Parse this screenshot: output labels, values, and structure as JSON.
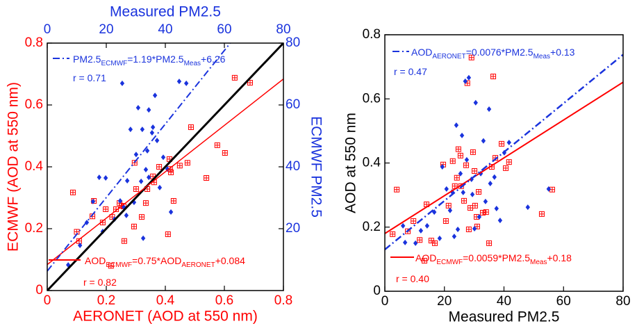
{
  "chart_data": [
    {
      "type": "scatter",
      "xlabel": "AERONET (AOD at 550 nm)",
      "ylabel": "ECMWF (AOD at 550 nm)",
      "x2label": "Measured PM2.5",
      "y2label": "ECMWF PM2.5",
      "xlim": [
        0,
        0.8
      ],
      "xticks": [
        0,
        0.2,
        0.4,
        0.6,
        0.8
      ],
      "ylim": [
        0,
        0.8
      ],
      "yticks": [
        0,
        0.2,
        0.4,
        0.6,
        0.8
      ],
      "x2lim": [
        0,
        80
      ],
      "x2ticks": [
        0,
        20,
        40,
        60,
        80
      ],
      "y2lim": [
        0,
        80
      ],
      "y2ticks": [
        20,
        40,
        60,
        80
      ],
      "xcolor": "#ff0000",
      "ycolor": "#ff0000",
      "x2color": "#1a33dd",
      "y2color": "#1a33dd",
      "series": [
        {
          "marker": "square",
          "color": "#ff0000",
          "x": [
            0.087,
            0.1,
            0.108,
            0.153,
            0.158,
            0.188,
            0.198,
            0.216,
            0.22,
            0.233,
            0.245,
            0.252,
            0.261,
            0.259,
            0.294,
            0.301,
            0.296,
            0.32,
            0.334,
            0.339,
            0.358,
            0.362,
            0.379,
            0.409,
            0.414,
            0.419,
            0.428,
            0.449,
            0.475,
            0.487,
            0.539,
            0.576,
            0.602,
            0.635,
            0.687,
            0.416
          ],
          "values": [
            0.317,
            0.19,
            0.16,
            0.24,
            0.29,
            0.22,
            0.263,
            0.08,
            0.238,
            0.263,
            0.283,
            0.274,
            0.16,
            0.272,
            0.207,
            0.328,
            0.413,
            0.238,
            0.283,
            0.328,
            0.369,
            0.35,
            0.4,
            0.182,
            0.425,
            0.382,
            0.29,
            0.404,
            0.413,
            0.528,
            0.364,
            0.47,
            0.445,
            0.688,
            0.672,
            0.393
          ]
        },
        {
          "marker": "diamond",
          "color": "#1a33dd",
          "axis": "y2",
          "x": [
            7.1,
            11.1,
            13.4,
            15.5,
            17.6,
            19.8,
            18.8,
            22.8,
            24.7,
            25.4,
            25.9,
            26.8,
            27.1,
            28.2,
            29.4,
            30.1,
            30.8,
            31.8,
            32.2,
            32.5,
            33.4,
            33.9,
            34.4,
            35.5,
            35.8,
            36.5,
            37.2,
            38.1,
            39.3,
            40.7,
            41.9,
            44.7,
            47.1,
            34.4
          ],
          "values": [
            8.3,
            14.6,
            22.0,
            28.8,
            36.6,
            36.4,
            19.1,
            23.1,
            29.0,
            67.0,
            27.0,
            24.3,
            35.5,
            52.1,
            28.5,
            44.0,
            59.1,
            35.3,
            52.1,
            16.9,
            39.1,
            45.2,
            58.4,
            51.0,
            52.8,
            63.1,
            48.5,
            33.3,
            43.1,
            39.3,
            25.4,
            67.6,
            67.0,
            36.6
          ]
        },
        {
          "marker": "line",
          "color": "#000000",
          "width": 3,
          "x": [
            0,
            0.8
          ],
          "values": [
            0,
            0.8
          ]
        },
        {
          "marker": "line",
          "color": "#ff0000",
          "width": 1.5,
          "x": [
            0,
            0.8
          ],
          "values": [
            0.084,
            0.684
          ]
        },
        {
          "marker": "line",
          "color": "#1a33dd",
          "width": 2,
          "dash": "10 4 2 4",
          "axis": "y2",
          "x": [
            0,
            62
          ],
          "values": [
            6.3,
            80
          ]
        }
      ],
      "annotations": [
        {
          "color": "#1a33dd",
          "dash": "10 4 2 4",
          "parts": [
            {
              "text": "PM2.5"
            },
            {
              "text": "ECMWF",
              "sub": true
            },
            {
              "text": "=1.19*PM2.5"
            },
            {
              "text": "Meas",
              "sub": true
            },
            {
              "text": "+6.26"
            }
          ]
        },
        {
          "color": "#1a33dd",
          "parts": [
            {
              "text": "r = 0.71"
            }
          ]
        },
        {
          "color": "#ff0000",
          "dash": "none",
          "parts": [
            {
              "text": "AOD"
            },
            {
              "text": "ECMWF",
              "sub": true
            },
            {
              "text": "=0.75*AOD"
            },
            {
              "text": "AERONET",
              "sub": true
            },
            {
              "text": "+0.084"
            }
          ]
        },
        {
          "color": "#ff0000",
          "parts": [
            {
              "text": "r = 0.82"
            }
          ]
        }
      ]
    },
    {
      "type": "scatter",
      "xlabel": "Measured PM2.5",
      "ylabel": "AOD at 550 nm",
      "xlim": [
        0,
        80
      ],
      "xticks": [
        0,
        20,
        40,
        60,
        80
      ],
      "ylim": [
        0,
        0.8
      ],
      "yticks": [
        0,
        0.2,
        0.4,
        0.6,
        0.8
      ],
      "xcolor": "#000000",
      "ycolor": "#000000",
      "series": [
        {
          "marker": "square",
          "color": "#ff0000",
          "x": [
            2.6,
            4.0,
            7.7,
            9.6,
            11.7,
            13.3,
            14.0,
            15.6,
            16.8,
            19.6,
            20.5,
            21.4,
            22.8,
            23.5,
            24.2,
            24.7,
            25.4,
            25.6,
            26.6,
            27.3,
            27.7,
            28.2,
            28.7,
            29.1,
            29.6,
            30.1,
            30.3,
            30.8,
            31.0,
            31.5,
            32.9,
            34.0,
            35.0,
            35.9,
            36.4,
            37.1,
            39.2,
            40.6,
            41.7,
            52.7,
            56.2
          ],
          "values": [
            0.178,
            0.317,
            0.187,
            0.219,
            0.16,
            0.095,
            0.271,
            0.158,
            0.15,
            0.395,
            0.219,
            0.267,
            0.406,
            0.328,
            0.354,
            0.443,
            0.423,
            0.328,
            0.282,
            0.393,
            0.649,
            0.193,
            0.26,
            0.729,
            0.434,
            0.375,
            0.267,
            0.232,
            0.202,
            0.31,
            0.245,
            0.247,
            0.15,
            0.388,
            0.67,
            0.416,
            0.46,
            0.384,
            0.403,
            0.241,
            0.317
          ]
        },
        {
          "marker": "diamond",
          "color": "#1a33dd",
          "x": [
            6.1,
            6.8,
            10.3,
            12.1,
            14.2,
            16.6,
            18.4,
            19.3,
            20.7,
            21.9,
            22.6,
            23.3,
            24.0,
            24.5,
            25.4,
            25.9,
            26.3,
            27.0,
            27.5,
            28.2,
            29.1,
            29.4,
            30.1,
            30.5,
            31.7,
            32.2,
            33.1,
            33.8,
            35.0,
            35.4,
            36.8,
            37.5,
            38.7,
            40.1,
            41.7,
            48.0,
            55.0
          ],
          "values": [
            0.204,
            0.152,
            0.15,
            0.189,
            0.204,
            0.247,
            0.165,
            0.388,
            0.319,
            0.252,
            0.31,
            0.171,
            0.518,
            0.193,
            0.367,
            0.486,
            0.308,
            0.655,
            0.41,
            0.666,
            0.349,
            0.302,
            0.195,
            0.588,
            0.232,
            0.367,
            0.469,
            0.28,
            0.568,
            0.336,
            0.356,
            0.258,
            0.221,
            0.432,
            0.464,
            0.262,
            0.319
          ]
        },
        {
          "marker": "line",
          "color": "#ff0000",
          "width": 2,
          "x": [
            0,
            80
          ],
          "values": [
            0.18,
            0.652
          ]
        },
        {
          "marker": "line",
          "color": "#1a33dd",
          "width": 2.5,
          "dash": "10 4 2 4",
          "x": [
            0,
            80
          ],
          "values": [
            0.13,
            0.738
          ]
        }
      ],
      "annotations": [
        {
          "color": "#1a33dd",
          "dash": "10 4 2 4",
          "parts": [
            {
              "text": "AOD"
            },
            {
              "text": "AERONET",
              "sub": true
            },
            {
              "text": "=0.0076*PM2.5"
            },
            {
              "text": "Meas",
              "sub": true
            },
            {
              "text": "+0.13"
            }
          ]
        },
        {
          "color": "#1a33dd",
          "parts": [
            {
              "text": "r = 0.47"
            }
          ]
        },
        {
          "color": "#ff0000",
          "dash": "none",
          "parts": [
            {
              "text": "AOD"
            },
            {
              "text": "ECMWF",
              "sub": true
            },
            {
              "text": "=0.0059*PM2.5"
            },
            {
              "text": "Meas",
              "sub": true
            },
            {
              "text": "+0.18"
            }
          ]
        },
        {
          "color": "#ff0000",
          "parts": [
            {
              "text": "r = 0.40"
            }
          ]
        }
      ]
    }
  ]
}
